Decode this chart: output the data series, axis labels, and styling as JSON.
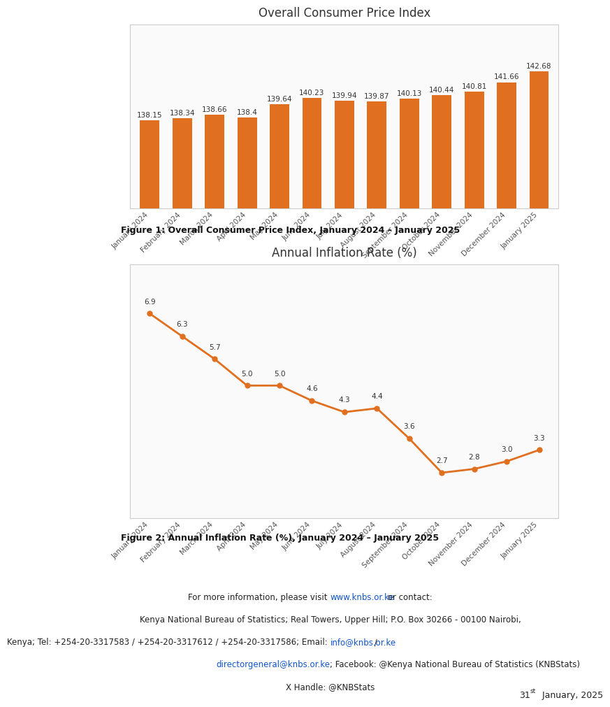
{
  "months": [
    "January 2024",
    "February 2024",
    "March 2024",
    "April 2024",
    "May 2024",
    "June 2024",
    "July 2024",
    "August 2024",
    "September 2024",
    "October 2024",
    "November 2024",
    "December 2024",
    "January 2025"
  ],
  "cpi_values": [
    138.15,
    138.34,
    138.66,
    138.4,
    139.64,
    140.23,
    139.94,
    139.87,
    140.13,
    140.44,
    140.81,
    141.66,
    142.68
  ],
  "inflation_values": [
    6.9,
    6.3,
    5.7,
    5.0,
    5.0,
    4.6,
    4.3,
    4.4,
    3.6,
    2.7,
    2.8,
    3.0,
    3.3
  ],
  "bar_color": "#E07020",
  "line_color": "#E07020",
  "chart1_title": "Overall Consumer Price Index",
  "chart2_title": "Annual Inflation Rate (%)",
  "fig1_caption": "Figure 1: Overall Consumer Price Index, January 2024 – January 2025",
  "fig2_caption": "Figure 2: Annual Inflation Rate (%), January 2024 – January 2025",
  "footer_line1": "For more information, please visit ",
  "footer_url1": "www.knbs.or.ke",
  "footer_line1_end": " or contact:",
  "footer_line2": "Kenya National Bureau of Statistics; Real Towers, Upper Hill; P.O. Box 30266 - 00100 Nairobi,",
  "footer_line3": "Kenya; Tel: +254-20-3317583 / +254-20-3317612 / +254-20-3317586; Email: ",
  "footer_email1": "info@knbs.or.ke",
  "footer_line3_end": " /",
  "footer_line4": "directorgeneral@knbs.or.ke",
  "footer_line4_end": "; Facebook: @Kenya National Bureau of Statistics (KNBStats)",
  "footer_line5": "X Handle: @KNBStats",
  "date_text": "31",
  "date_super": "st",
  "date_rest": " January, 2025",
  "bg_color": "#FFFFFF",
  "chart_bg": "#FAFAFA",
  "box_edge_color": "#CCCCCC",
  "label_fontsize": 7.5,
  "title_fontsize": 12,
  "caption_fontsize": 9,
  "tick_fontsize": 7.5,
  "annotation_fontsize": 7.5
}
